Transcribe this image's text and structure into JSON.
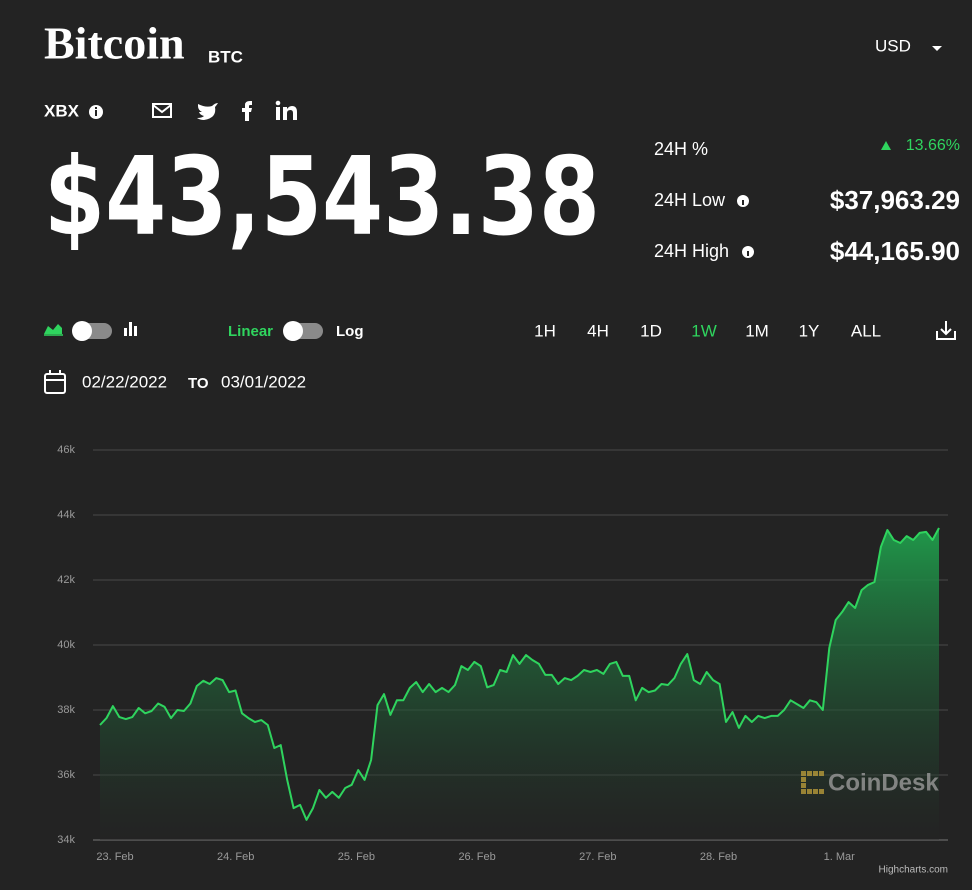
{
  "header": {
    "title": "Bitcoin",
    "symbol": "BTC",
    "currency": "USD",
    "exchange": "XBX"
  },
  "price": "$43,543.38",
  "stats": [
    {
      "label": "24H %",
      "value": "13.66%"
    },
    {
      "label": "24H Low",
      "value": "$37,963.29"
    },
    {
      "label": "24H High",
      "value": "$44,165.90"
    }
  ],
  "controls": {
    "scales": [
      "Linear",
      "Log"
    ],
    "ranges": [
      "1H",
      "4H",
      "1D",
      "1W",
      "1M",
      "1Y",
      "ALL"
    ],
    "active_range": 3,
    "date_from": "02/22/2022",
    "date_separator": "TO",
    "date_to": "03/01/2022"
  },
  "chart_data": {
    "type": "area",
    "xtick_labels": [
      "23. Feb",
      "24. Feb",
      "25. Feb",
      "26. Feb",
      "27. Feb",
      "28. Feb",
      "1. Mar"
    ],
    "series": [
      {
        "name": "BTC",
        "color": "#2fd45e",
        "values": [
          37540,
          37750,
          38120,
          37780,
          37720,
          37780,
          38060,
          37900,
          37970,
          38200,
          38100,
          37750,
          38000,
          37970,
          38200,
          38740,
          38900,
          38800,
          38980,
          38920,
          38550,
          38600,
          37900,
          37750,
          37630,
          37690,
          37540,
          36830,
          36920,
          35850,
          34980,
          35080,
          34620,
          34980,
          35540,
          35300,
          35480,
          35300,
          35600,
          35700,
          36150,
          35850,
          36460,
          38150,
          38490,
          37850,
          38300,
          38300,
          38680,
          38860,
          38550,
          38800,
          38550,
          38680,
          38550,
          38770,
          39350,
          39230,
          39480,
          39350,
          38700,
          38770,
          39230,
          39170,
          39690,
          39420,
          39690,
          39540,
          39420,
          39080,
          39080,
          38800,
          38980,
          38920,
          39050,
          39230,
          39170,
          39230,
          39110,
          39420,
          39480,
          39050,
          39050,
          38300,
          38680,
          38550,
          38600,
          38800,
          38770,
          38980,
          39420,
          39720,
          38920,
          38800,
          39170,
          38920,
          38800,
          37630,
          37940,
          37450,
          37820,
          37630,
          37820,
          37750,
          37820,
          37820,
          38000,
          38300,
          38180,
          38060,
          38300,
          38240,
          38000,
          39910,
          40770,
          41020,
          41320,
          41140,
          41690,
          41850,
          41940,
          43020,
          43540,
          43230,
          43140,
          43350,
          43230,
          43450,
          43480,
          43230,
          43600
        ]
      }
    ],
    "ylim": [
      34000,
      46000
    ],
    "yticks": [
      {
        "value": 34000,
        "label": "34k"
      },
      {
        "value": 36000,
        "label": "36k"
      },
      {
        "value": 38000,
        "label": "38k"
      },
      {
        "value": 40000,
        "label": "40k"
      },
      {
        "value": 42000,
        "label": "42k"
      },
      {
        "value": 44000,
        "label": "44k"
      },
      {
        "value": 46000,
        "label": "46k"
      }
    ],
    "grid": true,
    "watermark": "CoinDesk",
    "credits": "Highcharts.com"
  }
}
